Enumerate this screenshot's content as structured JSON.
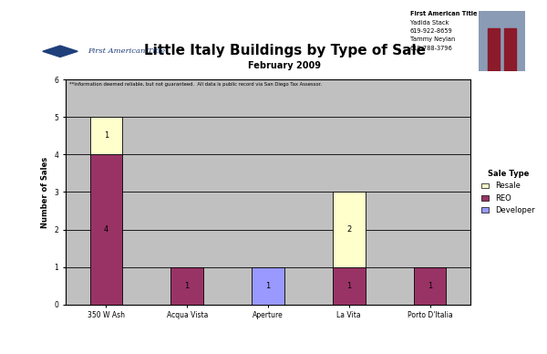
{
  "chart_data": {
    "type": "bar",
    "title": "Little Italy Buildings by Type of Sale",
    "subtitle": "February 2009",
    "logo_text": "First American Title",
    "contact": [
      "First American Title",
      "Yadida Stack",
      "619-922-8659",
      "Tammy Neylan",
      "619-788-3796"
    ],
    "note": "**Information deemed reliable, but not guaranteed.  All data is public record via San Diego Tax Assessor.",
    "y_label": "Number of Sales",
    "legend_title": "Sale Type",
    "categories": [
      "350 W Ash",
      "Acqua Vista",
      "Aperture",
      "La Vita",
      "Porto D'Italia"
    ],
    "series": [
      {
        "name": "Developer",
        "color": "#9999ff",
        "values": [
          null,
          null,
          1,
          null,
          null
        ]
      },
      {
        "name": "REO",
        "color": "#993366",
        "values": [
          4,
          1,
          null,
          1,
          1
        ]
      },
      {
        "name": "Resale",
        "color": "#ffffcc",
        "values": [
          1,
          null,
          null,
          2,
          null
        ]
      }
    ],
    "stacked": true,
    "data_labels": true,
    "ylim": [
      0,
      6
    ],
    "yticks": [
      0,
      1,
      2,
      3,
      4,
      5,
      6
    ],
    "grid": true,
    "legend": "right"
  }
}
